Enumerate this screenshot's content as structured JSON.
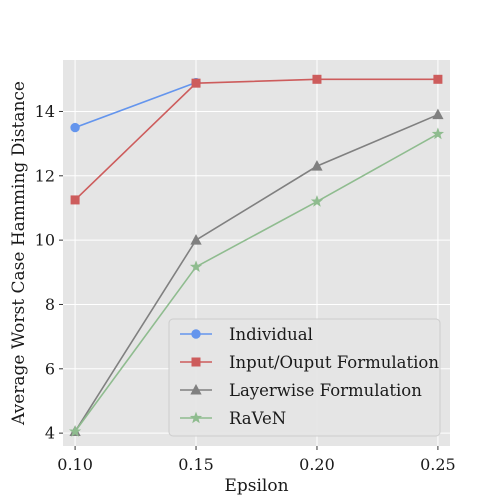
{
  "chart_data": {
    "type": "line",
    "title": "",
    "xlabel": "Epsilon",
    "ylabel": "Average Worst Case Hamming Distance",
    "xlim": [
      0.095,
      0.255
    ],
    "ylim": [
      3.6,
      15.6
    ],
    "xticks": [
      0.1,
      0.15,
      0.2,
      0.25
    ],
    "xtick_labels": [
      "0.10",
      "0.15",
      "0.20",
      "0.25"
    ],
    "yticks": [
      4,
      6,
      8,
      10,
      12,
      14
    ],
    "ytick_labels": [
      "4",
      "6",
      "8",
      "10",
      "12",
      "14"
    ],
    "grid": true,
    "legend_position": "lower-right",
    "background": "#e5e5e5",
    "series": [
      {
        "name": "Individual",
        "color": "#6495ed",
        "marker": "circle",
        "x": [
          0.1,
          0.15
        ],
        "values": [
          13.5,
          14.9
        ]
      },
      {
        "name": "Input/Ouput Formulation",
        "color": "#cd5c5c",
        "marker": "square",
        "x": [
          0.1,
          0.15,
          0.2,
          0.25
        ],
        "values": [
          11.25,
          14.88,
          15.0,
          15.0
        ]
      },
      {
        "name": "Layerwise Formulation",
        "color": "#808080",
        "marker": "triangle",
        "x": [
          0.1,
          0.15,
          0.2,
          0.25
        ],
        "values": [
          4.05,
          10.0,
          12.3,
          13.9
        ]
      },
      {
        "name": "RaVeN",
        "color": "#8fbc8f",
        "marker": "star",
        "x": [
          0.1,
          0.15,
          0.2,
          0.25
        ],
        "values": [
          4.05,
          9.17,
          11.2,
          13.3
        ]
      }
    ]
  }
}
